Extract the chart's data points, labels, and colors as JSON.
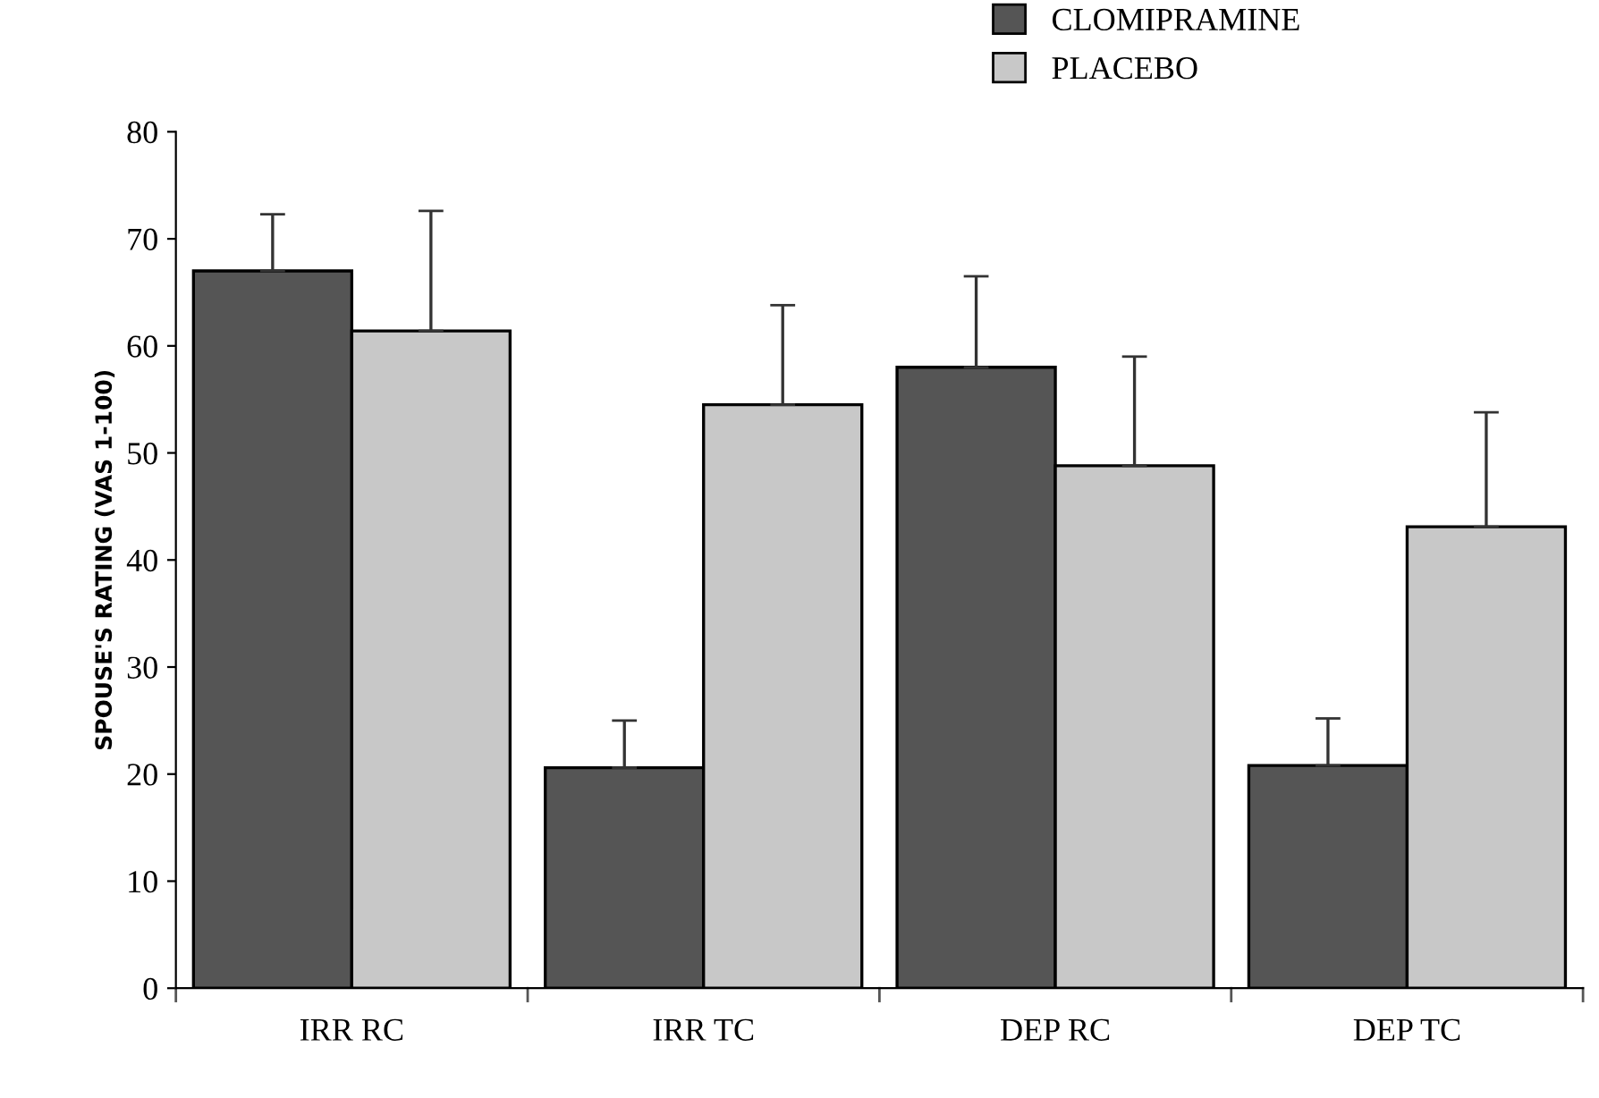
{
  "chart_data": {
    "type": "bar",
    "ylabel": "SPOUSE'S RATING (VAS 1-100)",
    "categories": [
      "IRR RC",
      "IRR TC",
      "DEP RC",
      "DEP TC"
    ],
    "series": [
      {
        "name": "CLOMIPRAMINE",
        "color": "#555555",
        "values": [
          67,
          20.6,
          58,
          20.8
        ],
        "errors": [
          [
            67,
            72.3
          ],
          [
            20.6,
            25
          ],
          [
            58,
            66.5
          ],
          [
            20.8,
            25.2
          ]
        ]
      },
      {
        "name": "PLACEBO",
        "color": "#c8c8c8",
        "values": [
          61.4,
          54.5,
          48.8,
          43.1
        ],
        "errors": [
          [
            61.4,
            72.6
          ],
          [
            54.5,
            63.8
          ],
          [
            48.8,
            59
          ],
          [
            43.1,
            53.8
          ]
        ]
      }
    ],
    "ylim": [
      0,
      80
    ],
    "yticks": [
      0,
      10,
      20,
      30,
      40,
      50,
      60,
      70,
      80
    ],
    "grid": false,
    "legend": "top right"
  }
}
